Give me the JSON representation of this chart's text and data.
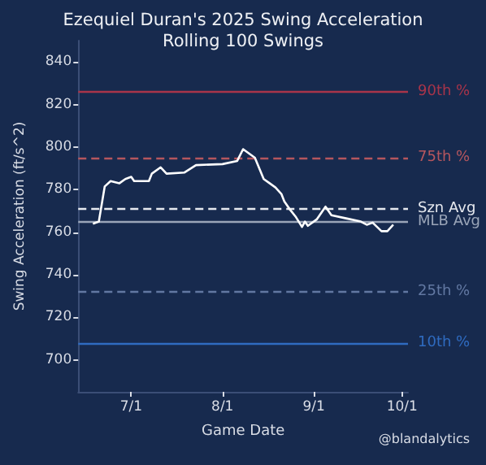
{
  "chart_data": {
    "type": "line",
    "title": "Ezequiel Duran's 2025 Swing Acceleration",
    "subtitle": "Rolling 100 Swings",
    "xlabel": "Game Date",
    "ylabel": "Swing Acceleration (ft/s^2)",
    "annotations": [
      "@blandalytics"
    ],
    "x": [
      "2025-06-18",
      "2025-06-20",
      "2025-06-22",
      "2025-06-24",
      "2025-06-27",
      "2025-06-29",
      "2025-07-01",
      "2025-07-02",
      "2025-07-07",
      "2025-07-08",
      "2025-07-11",
      "2025-07-13",
      "2025-07-19",
      "2025-07-23",
      "2025-08-01",
      "2025-08-06",
      "2025-08-08",
      "2025-08-12",
      "2025-08-15",
      "2025-08-17",
      "2025-08-19",
      "2025-08-21",
      "2025-08-22",
      "2025-08-24",
      "2025-08-26",
      "2025-08-28",
      "2025-08-29",
      "2025-08-30",
      "2025-09-02",
      "2025-09-05",
      "2025-09-07",
      "2025-09-12",
      "2025-09-17",
      "2025-09-19",
      "2025-09-21",
      "2025-09-24",
      "2025-09-26",
      "2025-09-28"
    ],
    "series": [
      {
        "color": "#ffffff",
        "values": [
          764,
          765,
          781.5,
          784,
          783,
          785,
          786,
          784,
          784,
          787.5,
          790.5,
          787.5,
          788,
          791.5,
          792,
          793.5,
          799,
          795,
          785,
          783,
          781,
          778,
          774.5,
          770.5,
          767,
          762.5,
          765,
          763,
          766,
          772,
          768,
          766.5,
          765,
          763.5,
          764.5,
          760.5,
          760.5,
          763.5
        ]
      }
    ],
    "xlim": [
      "2025-06-13",
      "2025-10-03"
    ],
    "xticks": [
      {
        "value": "2025-07-01",
        "label": "7/1"
      },
      {
        "value": "2025-08-01",
        "label": "8/1"
      },
      {
        "value": "2025-09-01",
        "label": "9/1"
      },
      {
        "value": "2025-10-01",
        "label": "10/1"
      }
    ],
    "ylim": [
      685,
      850
    ],
    "yticks": [
      700,
      720,
      740,
      760,
      780,
      800,
      820,
      840
    ],
    "ref_lines": [
      {
        "axis": "y",
        "value": 826,
        "label": "90th %",
        "color": "#a8344a",
        "line_style": "solid"
      },
      {
        "axis": "y",
        "value": 795,
        "label": "75th %",
        "color": "#b5565e",
        "line_style": "dashed"
      },
      {
        "axis": "y",
        "value": 771,
        "label": "Szn Avg",
        "color": "#e6e9ef",
        "line_style": "dashed"
      },
      {
        "axis": "y",
        "value": 765,
        "label": "MLB Avg",
        "color": "#9aa5b8",
        "line_style": "solid"
      },
      {
        "axis": "y",
        "value": 732,
        "label": "25th %",
        "color": "#6278a2",
        "line_style": "dashed"
      },
      {
        "axis": "y",
        "value": 708,
        "label": "10th %",
        "color": "#2f6bc0",
        "line_style": "solid"
      }
    ],
    "grid": false,
    "marker": "none",
    "line_style": "solid"
  }
}
